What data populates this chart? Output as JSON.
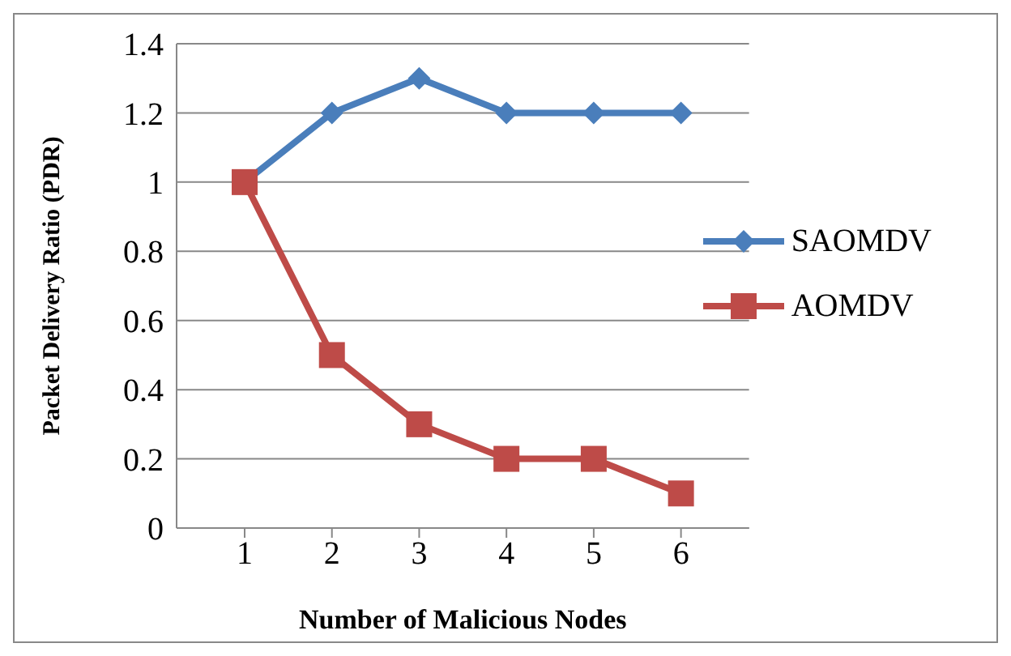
{
  "chart_data": {
    "type": "line",
    "xlabel": "Number of Malicious Nodes",
    "ylabel": "Packet Delivery Ratio (PDR)",
    "categories": [
      "1",
      "2",
      "3",
      "4",
      "5",
      "6"
    ],
    "series": [
      {
        "name": "SAOMDV",
        "color": "#4a7ebb",
        "marker": "diamond",
        "values": [
          1,
          1.2,
          1.3,
          1.2,
          1.2,
          1.2
        ]
      },
      {
        "name": "AOMDV",
        "color": "#be4b48",
        "marker": "square",
        "values": [
          1,
          0.5,
          0.3,
          0.2,
          0.2,
          0.1
        ]
      }
    ],
    "ylim": [
      0,
      1.4
    ],
    "yticks": [
      0,
      0.2,
      0.4,
      0.6,
      0.8,
      1,
      1.2,
      1.4
    ],
    "grid": "y",
    "legend": "right",
    "line_style": "solid"
  }
}
